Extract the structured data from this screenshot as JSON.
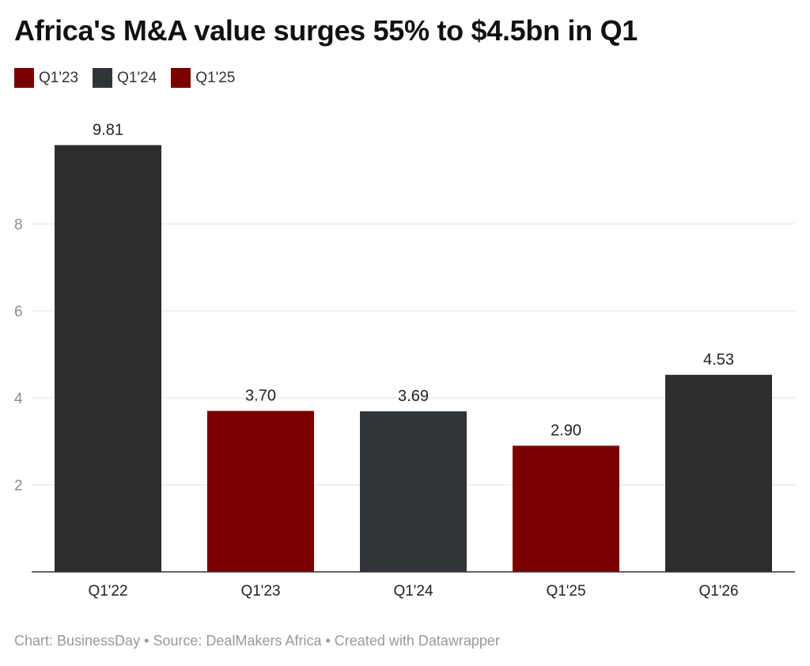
{
  "title": "Africa's M&A value surges 55% to $4.5bn in Q1",
  "footer": {
    "chart_credit": "Chart: BusinessDay",
    "source": "Source: DealMakers Africa",
    "created_with": "Created with Datawrapper",
    "separator": " • "
  },
  "colors": {
    "dark_red": "#7b0000",
    "dark_gray": "#2d2d2d",
    "charcoal": "#313438",
    "grid": "#e0e0e0",
    "axis": "#333333"
  },
  "chart_data": {
    "type": "bar",
    "title": "Africa's M&A value surges 55% to $4.5bn in Q1",
    "xlabel": "",
    "ylabel": "",
    "categories": [
      "Q1'22",
      "Q1'23",
      "Q1'24",
      "Q1'25",
      "Q1'26"
    ],
    "values": [
      9.81,
      3.7,
      3.69,
      2.9,
      4.53
    ],
    "value_labels": [
      "9.81",
      "3.70",
      "3.69",
      "2.90",
      "4.53"
    ],
    "bar_colors": [
      "#2d2d2d",
      "#7b0000",
      "#313438",
      "#7b0000",
      "#2d2d2d"
    ],
    "legend": [
      {
        "label": "Q1'23",
        "color": "#7b0000"
      },
      {
        "label": "Q1'24",
        "color": "#313438"
      },
      {
        "label": "Q1'25",
        "color": "#7b0000"
      }
    ],
    "legend_position": "top-left",
    "ylim": [
      0,
      10
    ],
    "yticks": [
      2,
      4,
      6,
      8
    ],
    "grid": true
  }
}
